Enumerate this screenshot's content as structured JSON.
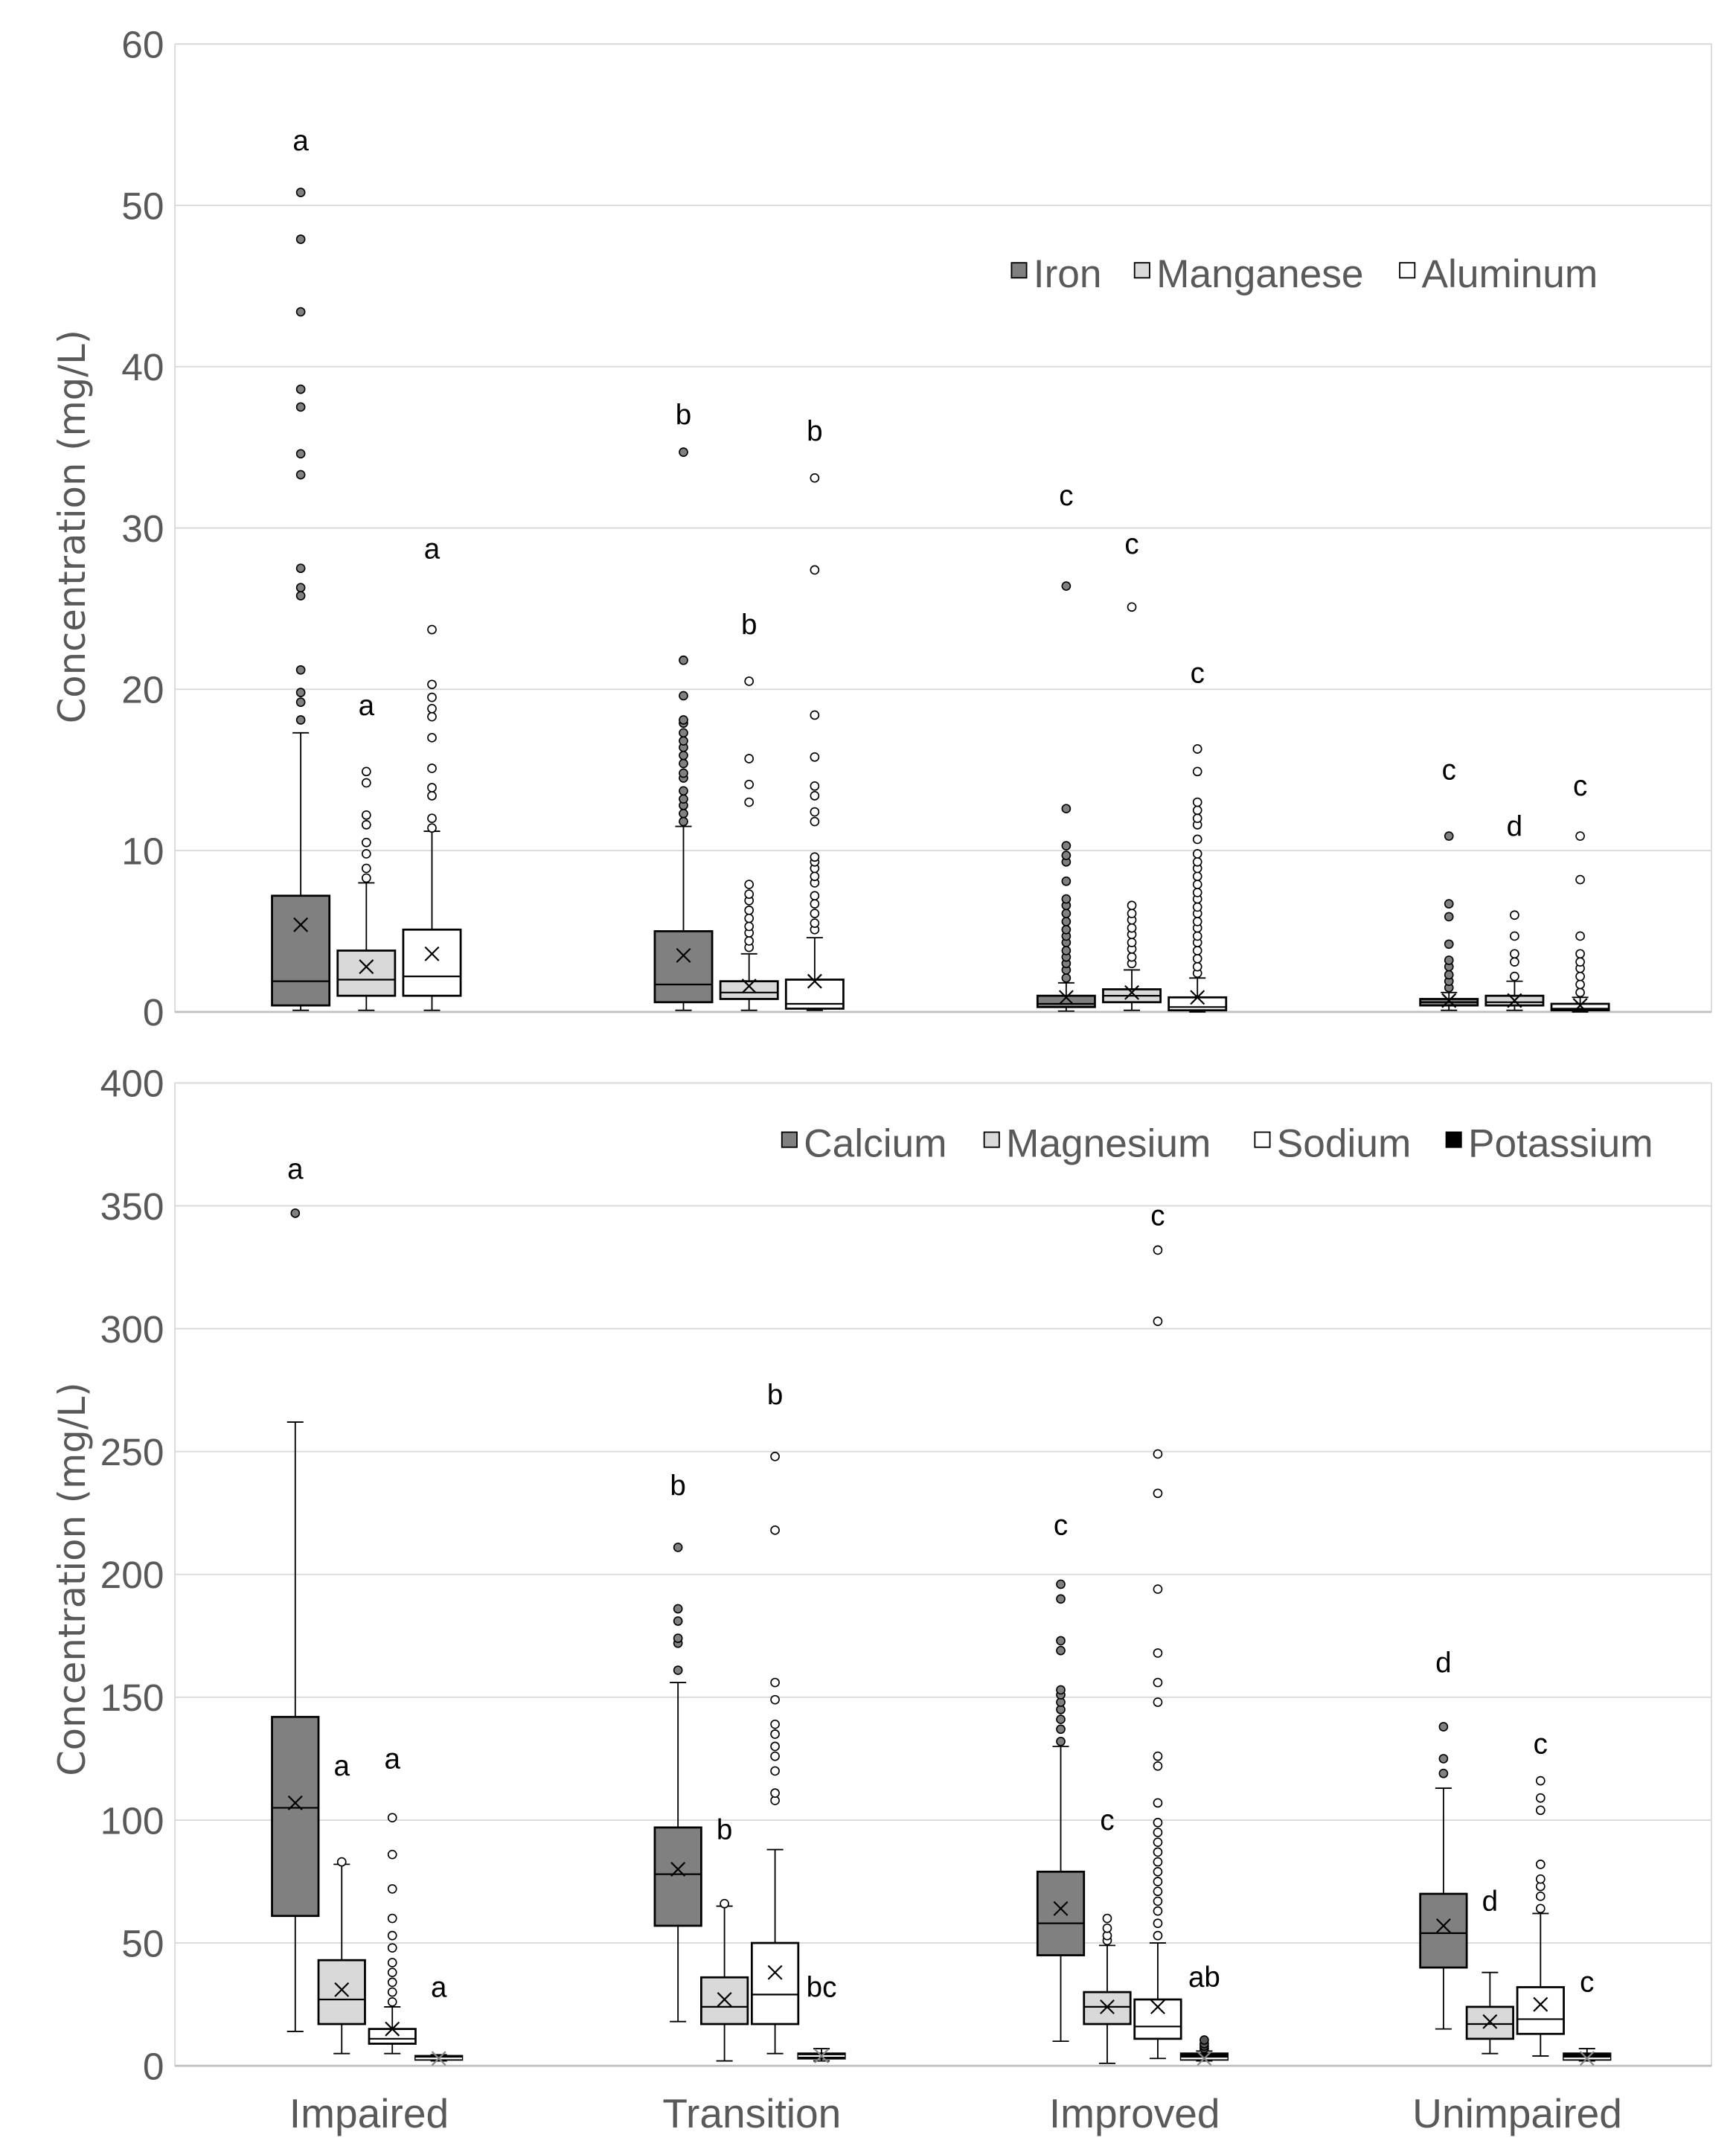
{
  "chart_data": [
    {
      "type": "box",
      "ylabel": "Concentration (mg/L)",
      "ylim": [
        0,
        60
      ],
      "yticks": [
        0,
        10,
        20,
        30,
        40,
        50,
        60
      ],
      "grid": true,
      "legend_position": "top-right",
      "categories": [
        "Impaired",
        "Transition",
        "Improved",
        "Unimpaired"
      ],
      "series": [
        {
          "name": "Iron",
          "color": "#808080",
          "boxes": [
            {
              "min": 0.1,
              "q1": 0.4,
              "median": 1.9,
              "q3": 7.2,
              "max": 17.3,
              "mean": 5.4,
              "outliers": [
                18.1,
                19.2,
                19.8,
                21.2,
                25.8,
                26.3,
                27.5,
                33.3,
                34.6,
                37.5,
                38.6,
                43.4,
                47.9,
                50.8
              ],
              "letter": "a",
              "letter_y": 54
            },
            {
              "min": 0.1,
              "q1": 0.6,
              "median": 1.7,
              "q3": 5.0,
              "max": 11.5,
              "mean": 3.5,
              "outliers": [
                11.8,
                12.3,
                12.8,
                13.2,
                13.7,
                14.5,
                14.8,
                15.4,
                15.9,
                16.4,
                16.8,
                17.3,
                17.9,
                18.1,
                19.6,
                21.8,
                34.7
              ],
              "letter": "b",
              "letter_y": 37
            },
            {
              "min": 0.05,
              "q1": 0.3,
              "median": 0.5,
              "q3": 1.0,
              "max": 1.8,
              "mean": 0.9,
              "outliers": [
                2.1,
                2.6,
                3.0,
                3.4,
                3.8,
                4.3,
                4.7,
                5.1,
                5.6,
                6.1,
                6.6,
                7.0,
                8.1,
                9.3,
                9.7,
                10.3,
                12.6,
                26.4
              ],
              "letter": "c",
              "letter_y": 32
            },
            {
              "min": 0.1,
              "q1": 0.4,
              "median": 0.6,
              "q3": 0.8,
              "max": 1.2,
              "mean": 0.7,
              "outliers": [
                1.5,
                1.9,
                2.3,
                2.8,
                3.2,
                4.2,
                5.9,
                6.7,
                10.9
              ],
              "letter": "c",
              "letter_y": 15
            }
          ]
        },
        {
          "name": "Manganese",
          "color": "#d9d9d9",
          "boxes": [
            {
              "min": 0.1,
              "q1": 1.0,
              "median": 2.0,
              "q3": 3.8,
              "max": 8.0,
              "mean": 2.8,
              "outliers": [
                8.3,
                8.9,
                9.8,
                10.5,
                11.6,
                12.2,
                14.2,
                14.9
              ],
              "letter": "a",
              "letter_y": 19
            },
            {
              "min": 0.1,
              "q1": 0.8,
              "median": 1.2,
              "q3": 1.9,
              "max": 3.6,
              "mean": 1.6,
              "outliers": [
                4.0,
                4.4,
                4.9,
                5.3,
                5.8,
                6.3,
                6.9,
                7.3,
                7.9,
                13.0,
                14.1,
                15.7,
                20.5
              ],
              "letter": "b",
              "letter_y": 24
            },
            {
              "min": 0.1,
              "q1": 0.6,
              "median": 1.0,
              "q3": 1.4,
              "max": 2.6,
              "mean": 1.2,
              "outliers": [
                3.0,
                3.4,
                3.9,
                4.3,
                4.8,
                5.2,
                5.7,
                6.1,
                6.6,
                25.1
              ],
              "letter": "c",
              "letter_y": 29
            },
            {
              "min": 0.1,
              "q1": 0.4,
              "median": 0.6,
              "q3": 1.0,
              "max": 1.9,
              "mean": 0.7,
              "outliers": [
                2.2,
                3.1,
                3.6,
                4.7,
                6.0
              ],
              "letter": "d",
              "letter_y": 11.5
            }
          ]
        },
        {
          "name": "Aluminum",
          "color": "#ffffff",
          "boxes": [
            {
              "min": 0.1,
              "q1": 1.0,
              "median": 2.2,
              "q3": 5.1,
              "max": 11.2,
              "mean": 3.6,
              "outliers": [
                11.4,
                12.0,
                13.4,
                13.9,
                15.1,
                17.0,
                18.3,
                18.8,
                19.5,
                20.3,
                23.7
              ],
              "letter": "a",
              "letter_y": 28.7
            },
            {
              "min": 0.1,
              "q1": 0.2,
              "median": 0.5,
              "q3": 2.0,
              "max": 4.6,
              "mean": 1.9,
              "outliers": [
                5.1,
                5.5,
                6.1,
                6.7,
                7.2,
                8.0,
                8.4,
                8.9,
                9.3,
                9.6,
                11.8,
                12.4,
                13.4,
                14.0,
                15.8,
                18.4,
                27.4,
                33.1
              ],
              "letter": "b",
              "letter_y": 36
            },
            {
              "min": 0.0,
              "q1": 0.1,
              "median": 0.3,
              "q3": 0.9,
              "max": 2.1,
              "mean": 0.9,
              "outliers": [
                2.4,
                2.8,
                3.3,
                3.8,
                4.3,
                4.7,
                5.2,
                5.6,
                6.1,
                6.5,
                7.0,
                7.4,
                7.9,
                8.4,
                8.9,
                9.3,
                9.8,
                10.7,
                11.6,
                12.0,
                12.5,
                13.0,
                14.9,
                16.3
              ],
              "letter": "c",
              "letter_y": 21
            },
            {
              "min": 0.0,
              "q1": 0.1,
              "median": 0.2,
              "q3": 0.5,
              "max": 0.9,
              "mean": 0.4,
              "outliers": [
                1.2,
                1.7,
                2.2,
                2.7,
                3.1,
                3.6,
                4.7,
                8.2,
                10.9
              ],
              "letter": "c",
              "letter_y": 14
            }
          ]
        }
      ]
    },
    {
      "type": "box",
      "ylabel": "Concentration (mg/L)",
      "ylim": [
        0,
        400
      ],
      "yticks": [
        0,
        50,
        100,
        150,
        200,
        250,
        300,
        350,
        400
      ],
      "grid": true,
      "legend_position": "top-right",
      "categories": [
        "Impaired",
        "Transition",
        "Improved",
        "Unimpaired"
      ],
      "series": [
        {
          "name": "Calcium",
          "color": "#808080",
          "boxes": [
            {
              "min": 14,
              "q1": 61,
              "median": 105,
              "q3": 142,
              "max": 262,
              "mean": 107,
              "outliers": [
                347
              ],
              "letter": "a",
              "letter_y": 365
            },
            {
              "min": 18,
              "q1": 57,
              "median": 78,
              "q3": 97,
              "max": 156,
              "mean": 80,
              "outliers": [
                161,
                172,
                174,
                181,
                186,
                211
              ],
              "letter": "b",
              "letter_y": 236
            },
            {
              "min": 10,
              "q1": 45,
              "median": 58,
              "q3": 79,
              "max": 130,
              "mean": 64,
              "outliers": [
                132,
                137,
                141,
                145,
                148,
                151,
                153,
                169,
                173,
                190,
                196
              ],
              "letter": "c",
              "letter_y": 220
            },
            {
              "min": 15,
              "q1": 40,
              "median": 54,
              "q3": 70,
              "max": 113,
              "mean": 57,
              "outliers": [
                119,
                125,
                138
              ],
              "letter": "d",
              "letter_y": 164
            }
          ]
        },
        {
          "name": "Magnesium",
          "color": "#d9d9d9",
          "boxes": [
            {
              "min": 5,
              "q1": 17,
              "median": 27,
              "q3": 43,
              "max": 82,
              "mean": 31,
              "outliers": [
                83
              ],
              "letter": "a",
              "letter_y": 122
            },
            {
              "min": 2,
              "q1": 17,
              "median": 24,
              "q3": 36,
              "max": 65,
              "mean": 27,
              "outliers": [
                66
              ],
              "letter": "b",
              "letter_y": 96
            },
            {
              "min": 1,
              "q1": 17,
              "median": 24,
              "q3": 30,
              "max": 49,
              "mean": 24,
              "outliers": [
                51,
                53,
                56,
                60
              ],
              "letter": "c",
              "letter_y": 100
            },
            {
              "min": 5,
              "q1": 11,
              "median": 17,
              "q3": 24,
              "max": 38,
              "mean": 18,
              "outliers": [],
              "letter": "d",
              "letter_y": 67
            }
          ]
        },
        {
          "name": "Sodium",
          "color": "#ffffff",
          "boxes": [
            {
              "min": 5,
              "q1": 9,
              "median": 11,
              "q3": 15,
              "max": 24,
              "mean": 15,
              "outliers": [
                26,
                30,
                34,
                38,
                42,
                48,
                53,
                60,
                72,
                86,
                101
              ],
              "letter": "a",
              "letter_y": 125
            },
            {
              "min": 5,
              "q1": 17,
              "median": 29,
              "q3": 50,
              "max": 88,
              "mean": 38,
              "outliers": [
                108,
                111,
                120,
                126,
                130,
                135,
                139,
                149,
                156,
                218,
                248
              ],
              "letter": "b",
              "letter_y": 273
            },
            {
              "min": 3,
              "q1": 11,
              "median": 16,
              "q3": 27,
              "max": 50,
              "mean": 24,
              "outliers": [
                53,
                58,
                63,
                67,
                71,
                75,
                79,
                83,
                87,
                91,
                95,
                99,
                107,
                122,
                126,
                148,
                156,
                168,
                194,
                233,
                249,
                303,
                332
              ],
              "letter": "c",
              "letter_y": 346
            },
            {
              "min": 4,
              "q1": 13,
              "median": 19,
              "q3": 32,
              "max": 62,
              "mean": 25,
              "outliers": [
                64,
                69,
                73,
                76,
                82,
                104,
                109,
                116
              ],
              "letter": "c",
              "letter_y": 131
            }
          ]
        },
        {
          "name": "Potassium",
          "color": "#000000",
          "boxes": [
            {
              "min": 2,
              "q1": 2.5,
              "median": 3,
              "q3": 4,
              "max": 4.5,
              "mean": 3,
              "outliers": [],
              "letter": "a",
              "letter_y": 32
            },
            {
              "min": 2,
              "q1": 3,
              "median": 4,
              "q3": 5,
              "max": 7,
              "mean": 4,
              "outliers": [],
              "letter": "bc",
              "letter_y": 32
            },
            {
              "min": 2,
              "q1": 2.5,
              "median": 3,
              "q3": 5,
              "max": 6,
              "mean": 3,
              "outliers": [
                7,
                8,
                9,
                10.5
              ],
              "letter": "ab",
              "letter_y": 36
            },
            {
              "min": 2,
              "q1": 2.5,
              "median": 3,
              "q3": 5,
              "max": 7,
              "mean": 3,
              "outliers": [],
              "letter": "c",
              "letter_y": 34
            }
          ]
        }
      ]
    }
  ]
}
